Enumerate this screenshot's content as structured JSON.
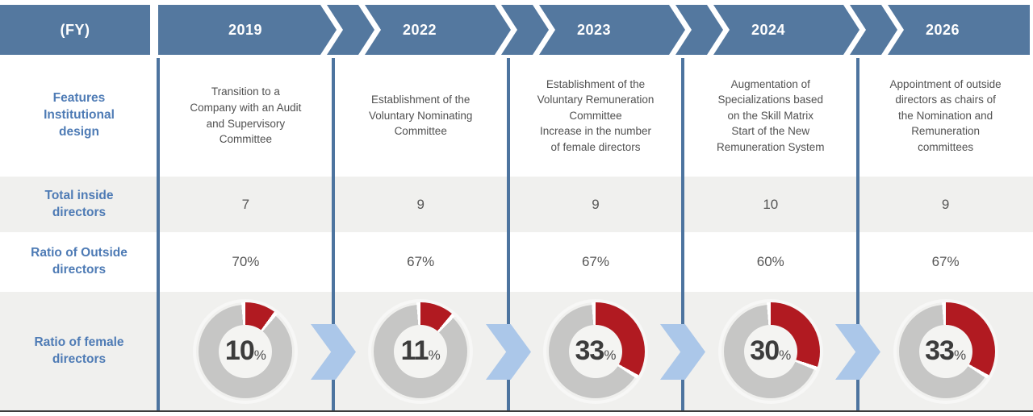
{
  "header": {
    "fy_label": "(FY)",
    "years": [
      "2019",
      "2022",
      "2023",
      "2024",
      "2026"
    ]
  },
  "rows": {
    "features": {
      "label": "Features\nInstitutional\ndesign",
      "cells": [
        "Transition to a\nCompany with an Audit\nand Supervisory\nCommittee",
        "Establishment of the\nVoluntary Nominating\nCommittee",
        "Establishment of the\nVoluntary Remuneration\nCommittee\nIncrease in the number\nof female directors",
        "Augmentation of\nSpecializations based\non the Skill Matrix\nStart of the New\nRemuneration System",
        "Appointment of outside\ndirectors as chairs of\nthe Nomination and\nRemuneration\ncommittees"
      ]
    },
    "total_inside": {
      "label": "Total inside\ndirectors",
      "cells": [
        "7",
        "9",
        "9",
        "10",
        "9"
      ]
    },
    "outside_ratio": {
      "label": "Ratio of Outside\ndirectors",
      "cells": [
        "70%",
        "67%",
        "67%",
        "60%",
        "67%"
      ]
    },
    "female_ratio": {
      "label": "Ratio of female\ndirectors"
    }
  },
  "chart_data": {
    "type": "pie",
    "variant": "donut",
    "title": "Ratio of female directors",
    "categories": [
      "2019",
      "2022",
      "2023",
      "2024",
      "2026"
    ],
    "values": [
      10,
      11,
      33,
      30,
      33
    ],
    "unit": "%",
    "series_color": "#b11a21",
    "remainder_color": "#c6c6c5"
  },
  "colors": {
    "header_blue": "#54789f",
    "divider_blue": "#4d749f",
    "label_blue": "#4e7bb5",
    "row_gray": "#f0f0ee",
    "flow_arrow_blue": "#abc7e9",
    "donut_red": "#b11a21",
    "donut_gray": "#c6c6c5",
    "bottom_rule": "#3b3b3b"
  }
}
